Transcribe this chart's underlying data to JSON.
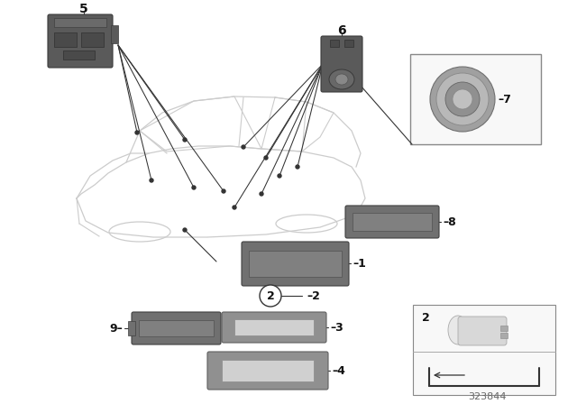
{
  "bg_color": "#ffffff",
  "diagram_number": "323844",
  "figsize": [
    6.4,
    4.48
  ],
  "dpi": 100,
  "car_color": "#cccccc",
  "part_color": "#707070",
  "part_color_light": "#999999",
  "line_color": "#333333",
  "label_color": "#111111"
}
